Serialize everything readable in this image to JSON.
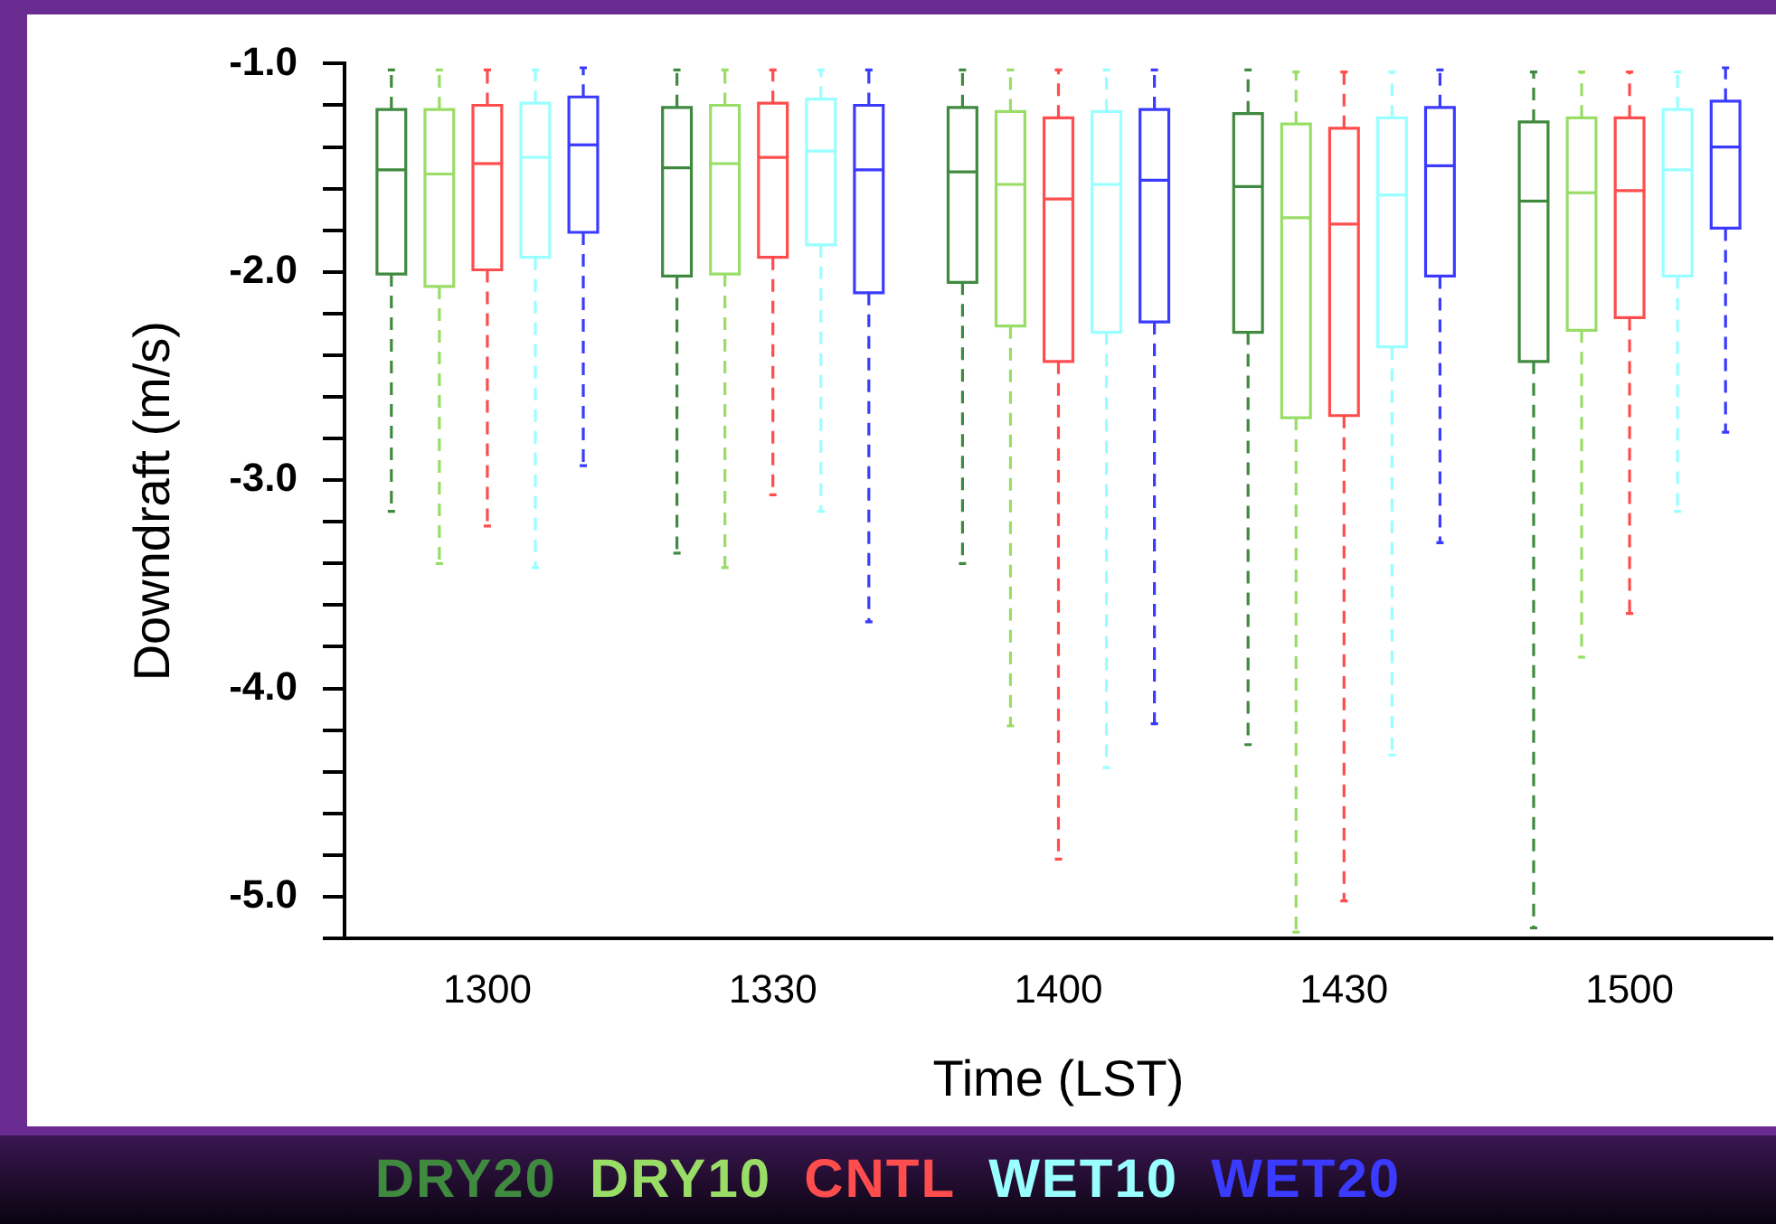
{
  "chart_data": {
    "type": "box",
    "xlabel": "Time (LST)",
    "ylabel": "Downdraft (m/s)",
    "categories": [
      "1300",
      "1330",
      "1400",
      "1430",
      "1500"
    ],
    "ylim": [
      -5.2,
      -1.0
    ],
    "yticks": [
      {
        "value": -5.2,
        "label": null
      },
      {
        "value": -5,
        "label": "-5.0"
      },
      {
        "value": -4.8,
        "label": null
      },
      {
        "value": -4.6,
        "label": null
      },
      {
        "value": -4.4,
        "label": null
      },
      {
        "value": -4.2,
        "label": null
      },
      {
        "value": -4,
        "label": "-4.0"
      },
      {
        "value": -3.8,
        "label": null
      },
      {
        "value": -3.6,
        "label": null
      },
      {
        "value": -3.4,
        "label": null
      },
      {
        "value": -3.2,
        "label": null
      },
      {
        "value": -3,
        "label": "-3.0"
      },
      {
        "value": -2.8,
        "label": null
      },
      {
        "value": -2.6,
        "label": null
      },
      {
        "value": -2.4,
        "label": null
      },
      {
        "value": -2.2,
        "label": null
      },
      {
        "value": -2,
        "label": "-2.0"
      },
      {
        "value": -1.8,
        "label": null
      },
      {
        "value": -1.6,
        "label": null
      },
      {
        "value": -1.4,
        "label": null
      },
      {
        "value": -1.2,
        "label": null
      },
      {
        "value": -1,
        "label": "-1.0"
      }
    ],
    "grid": false,
    "legend": "bottom",
    "line_style": "dashed",
    "series": [
      {
        "name": "DRY20",
        "color": "#3f8a3f",
        "boxes": [
          {
            "low": -3.15,
            "q1": -2.01,
            "median": -1.51,
            "q3": -1.22,
            "high": -1.03
          },
          {
            "low": -3.35,
            "q1": -2.02,
            "median": -1.5,
            "q3": -1.21,
            "high": -1.03
          },
          {
            "low": -3.4,
            "q1": -2.05,
            "median": -1.52,
            "q3": -1.21,
            "high": -1.03
          },
          {
            "low": -4.27,
            "q1": -2.29,
            "median": -1.59,
            "q3": -1.24,
            "high": -1.03
          },
          {
            "low": -5.15,
            "q1": -2.43,
            "median": -1.66,
            "q3": -1.28,
            "high": -1.04
          }
        ]
      },
      {
        "name": "DRY10",
        "color": "#99dd66",
        "boxes": [
          {
            "low": -3.4,
            "q1": -2.07,
            "median": -1.53,
            "q3": -1.22,
            "high": -1.03
          },
          {
            "low": -3.42,
            "q1": -2.01,
            "median": -1.48,
            "q3": -1.2,
            "high": -1.03
          },
          {
            "low": -4.18,
            "q1": -2.26,
            "median": -1.58,
            "q3": -1.23,
            "high": -1.03
          },
          {
            "low": -5.17,
            "q1": -2.7,
            "median": -1.74,
            "q3": -1.29,
            "high": -1.04
          },
          {
            "low": -3.85,
            "q1": -2.28,
            "median": -1.62,
            "q3": -1.26,
            "high": -1.04
          }
        ]
      },
      {
        "name": "CNTL",
        "color": "#ff4d4d",
        "boxes": [
          {
            "low": -3.22,
            "q1": -1.99,
            "median": -1.48,
            "q3": -1.2,
            "high": -1.03
          },
          {
            "low": -3.07,
            "q1": -1.93,
            "median": -1.45,
            "q3": -1.19,
            "high": -1.03
          },
          {
            "low": -4.82,
            "q1": -2.43,
            "median": -1.65,
            "q3": -1.26,
            "high": -1.03
          },
          {
            "low": -5.02,
            "q1": -2.69,
            "median": -1.77,
            "q3": -1.31,
            "high": -1.04
          },
          {
            "low": -3.64,
            "q1": -2.22,
            "median": -1.61,
            "q3": -1.26,
            "high": -1.04
          }
        ]
      },
      {
        "name": "WET10",
        "color": "#99ffff",
        "boxes": [
          {
            "low": -3.42,
            "q1": -1.93,
            "median": -1.45,
            "q3": -1.19,
            "high": -1.03
          },
          {
            "low": -3.15,
            "q1": -1.87,
            "median": -1.42,
            "q3": -1.17,
            "high": -1.03
          },
          {
            "low": -4.38,
            "q1": -2.29,
            "median": -1.58,
            "q3": -1.23,
            "high": -1.03
          },
          {
            "low": -4.32,
            "q1": -2.36,
            "median": -1.63,
            "q3": -1.26,
            "high": -1.04
          },
          {
            "low": -3.15,
            "q1": -2.02,
            "median": -1.51,
            "q3": -1.22,
            "high": -1.04
          }
        ]
      },
      {
        "name": "WET20",
        "color": "#3b3bff",
        "boxes": [
          {
            "low": -2.93,
            "q1": -1.81,
            "median": -1.39,
            "q3": -1.16,
            "high": -1.02
          },
          {
            "low": -3.68,
            "q1": -2.1,
            "median": -1.51,
            "q3": -1.2,
            "high": -1.03
          },
          {
            "low": -4.17,
            "q1": -2.24,
            "median": -1.56,
            "q3": -1.22,
            "high": -1.03
          },
          {
            "low": -3.3,
            "q1": -2.02,
            "median": -1.49,
            "q3": -1.21,
            "high": -1.03
          },
          {
            "low": -2.77,
            "q1": -1.79,
            "median": -1.4,
            "q3": -1.18,
            "high": -1.02
          }
        ]
      }
    ]
  }
}
